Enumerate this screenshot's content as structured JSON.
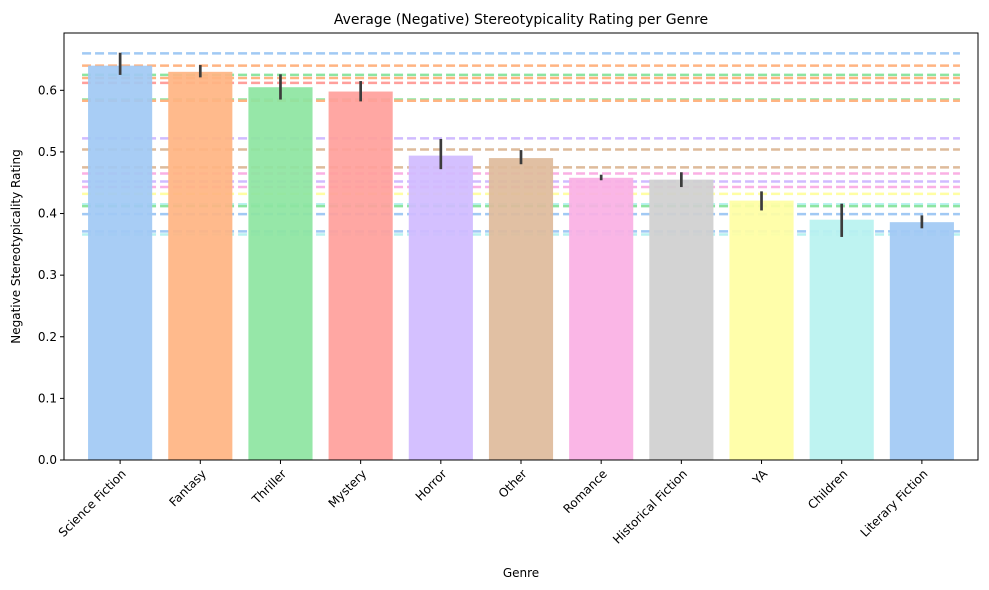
{
  "chart_data": {
    "type": "bar",
    "title": "Average (Negative) Stereotypicality Rating per Genre",
    "xlabel": "Genre",
    "ylabel": "Negative Stereotypicality Rating",
    "categories": [
      "Science Fiction",
      "Fantasy",
      "Thriller",
      "Mystery",
      "Horror",
      "Other",
      "Romance",
      "Historical Fiction",
      "YA",
      "Children",
      "Literary Fiction"
    ],
    "values": [
      0.64,
      0.63,
      0.605,
      0.598,
      0.494,
      0.49,
      0.458,
      0.455,
      0.421,
      0.39,
      0.386
    ],
    "error_low": [
      0.625,
      0.621,
      0.585,
      0.582,
      0.472,
      0.48,
      0.454,
      0.443,
      0.405,
      0.362,
      0.376
    ],
    "error_high": [
      0.661,
      0.641,
      0.626,
      0.615,
      0.521,
      0.503,
      0.463,
      0.467,
      0.436,
      0.416,
      0.397
    ],
    "colors": [
      "#a1c9f4",
      "#ffb482",
      "#8de5a1",
      "#ff9f9b",
      "#d0bbff",
      "#debb9b",
      "#fab0e4",
      "#cfcfcf",
      "#fffea3",
      "#b9f2f0",
      "#a1c9f4"
    ],
    "reference_lines": [
      {
        "value": 0.66,
        "color": "#a1c9f4"
      },
      {
        "value": 0.64,
        "color": "#ffb482"
      },
      {
        "value": 0.625,
        "color": "#8de5a1"
      },
      {
        "value": 0.62,
        "color": "#ffb482"
      },
      {
        "value": 0.612,
        "color": "#ff9f9b"
      },
      {
        "value": 0.585,
        "color": "#8de5a1"
      },
      {
        "value": 0.583,
        "color": "#ffb482"
      },
      {
        "value": 0.522,
        "color": "#d0bbff"
      },
      {
        "value": 0.504,
        "color": "#debb9b"
      },
      {
        "value": 0.475,
        "color": "#debb9b"
      },
      {
        "value": 0.465,
        "color": "#fab0e4"
      },
      {
        "value": 0.452,
        "color": "#d0bbff"
      },
      {
        "value": 0.443,
        "color": "#fab0e4"
      },
      {
        "value": 0.432,
        "color": "#fffea3"
      },
      {
        "value": 0.415,
        "color": "#b9f2f0"
      },
      {
        "value": 0.412,
        "color": "#8de5a1"
      },
      {
        "value": 0.399,
        "color": "#a1c9f4"
      },
      {
        "value": 0.371,
        "color": "#a1c9f4"
      },
      {
        "value": 0.366,
        "color": "#b9f2f0"
      }
    ],
    "ylim": [
      0,
      0.693
    ],
    "yticks": [
      "0.0",
      "0.1",
      "0.2",
      "0.3",
      "0.4",
      "0.5",
      "0.6"
    ],
    "ytick_values": [
      0,
      0.1,
      0.2,
      0.3,
      0.4,
      0.5,
      0.6
    ],
    "grid": false,
    "legend": "none"
  }
}
